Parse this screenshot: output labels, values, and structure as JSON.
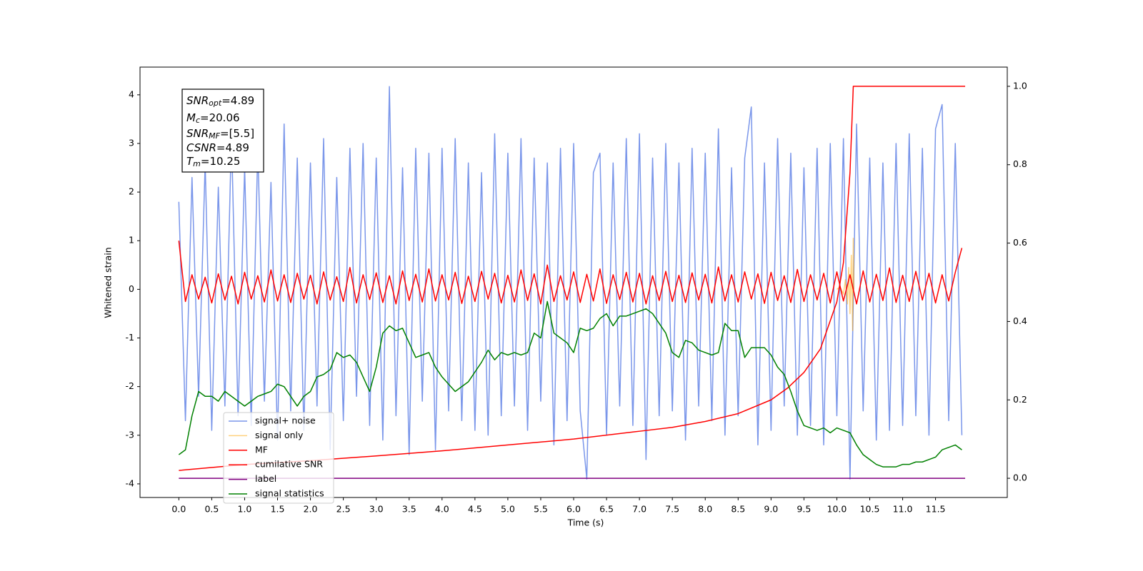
{
  "chart_data": {
    "type": "line",
    "xlabel": "Time (s)",
    "ylabel": "Whitened strain",
    "xlim": [
      -0.59,
      12.59
    ],
    "ylim": [
      -4.28,
      4.57
    ],
    "y2lim": [
      -0.049,
      1.049
    ],
    "xticks": [
      {
        "value": 0,
        "label": "0.0"
      },
      0.5,
      {
        "value": 1,
        "label": "1.0"
      },
      1.5,
      {
        "value": 2,
        "label": "2.0"
      },
      2.5,
      {
        "value": 3,
        "label": "3.0"
      },
      3.5,
      {
        "value": 4,
        "label": "4.0"
      },
      4.5,
      {
        "value": 5,
        "label": "5.0"
      },
      5.5,
      {
        "value": 6,
        "label": "6.0"
      },
      6.5,
      {
        "value": 7,
        "label": "7.0"
      },
      7.5,
      {
        "value": 8,
        "label": "8.0"
      },
      8.5,
      {
        "value": 9,
        "label": "9.0"
      },
      9.5,
      {
        "value": 10,
        "label": "10.0"
      },
      10.5,
      {
        "value": 11,
        "label": "11.0"
      },
      11.5
    ],
    "yticks": [
      -4,
      -3,
      -2,
      -1,
      0,
      1,
      2,
      3,
      4
    ],
    "y2ticks": [
      {
        "value": 0,
        "label": "0.0"
      },
      0.2,
      0.4,
      0.6,
      0.8,
      {
        "value": 1,
        "label": "1.0"
      }
    ],
    "legend": "lower left",
    "annotation": [
      {
        "symbol": "SNR",
        "subscript": "opt",
        "text": "=4.89"
      },
      {
        "symbol": "M",
        "subscript": "c",
        "text": "=20.06"
      },
      {
        "symbol": "SNR",
        "subscript": "MF",
        "text": "=[5.5]"
      },
      {
        "symbol": "CSNR",
        "text": "=4.89"
      },
      {
        "symbol": "T",
        "subscript": "m",
        "text": "=10.25"
      }
    ],
    "x": [
      0,
      0.1,
      0.2,
      0.3,
      0.4,
      0.5,
      0.6,
      0.7,
      0.8,
      0.9,
      1,
      1.1,
      1.2,
      1.3,
      1.4,
      1.5,
      1.6,
      1.7,
      1.8,
      1.9,
      2,
      2.1,
      2.2,
      2.3,
      2.4,
      2.5,
      2.6,
      2.7,
      2.8,
      2.9,
      3,
      3.1,
      3.2,
      3.3,
      3.4,
      3.5,
      3.6,
      3.7,
      3.8,
      3.9,
      4,
      4.1,
      4.2,
      4.3,
      4.4,
      4.5,
      4.6,
      4.7,
      4.8,
      4.9,
      5,
      5.1,
      5.2,
      5.3,
      5.4,
      5.5,
      5.6,
      5.7,
      5.8,
      5.9,
      6,
      6.1,
      6.2,
      6.3,
      6.4,
      6.5,
      6.6,
      6.7,
      6.8,
      6.9,
      7,
      7.1,
      7.2,
      7.3,
      7.4,
      7.5,
      7.6,
      7.7,
      7.8,
      7.9,
      8,
      8.1,
      8.2,
      8.3,
      8.4,
      8.5,
      8.6,
      8.7,
      8.8,
      8.9,
      9,
      9.1,
      9.2,
      9.3,
      9.4,
      9.5,
      9.6,
      9.7,
      9.8,
      9.9,
      10,
      10.1,
      10.2,
      10.3,
      10.4,
      10.5,
      10.6,
      10.7,
      10.8,
      10.9,
      11,
      11.1,
      11.2,
      11.3,
      11.4,
      11.5,
      11.6,
      11.7,
      11.8,
      11.9
    ],
    "series": [
      {
        "name": "signal+ noise",
        "color": "#4169e1",
        "alpha": 0.7,
        "values": [
          1.8,
          -2.7,
          2.3,
          -2.2,
          2.6,
          -2.9,
          2.1,
          -2.4,
          3.2,
          -2.6,
          2.5,
          -2.8,
          2.9,
          -2.3,
          2.2,
          -3.1,
          3.4,
          -2.5,
          2.7,
          -2.9,
          2.6,
          -2.4,
          3.1,
          -3.3,
          2.3,
          -2.7,
          2.9,
          -2.2,
          3.0,
          -2.8,
          2.7,
          -3.1,
          4.17,
          -2.6,
          2.5,
          -3.4,
          2.9,
          -2.3,
          2.8,
          -3.3,
          2.9,
          -2.5,
          3.1,
          -2.7,
          2.6,
          -2.9,
          2.4,
          -3.0,
          3.2,
          -2.6,
          2.8,
          -2.4,
          3.1,
          -2.9,
          2.7,
          -2.3,
          2.6,
          -3.2,
          2.9,
          -2.7,
          3.0,
          -2.5,
          -3.9,
          2.4,
          2.8,
          -3.0,
          2.6,
          -2.4,
          3.1,
          -2.8,
          3.2,
          -3.5,
          2.7,
          -2.6,
          3.0,
          -2.5,
          2.6,
          -3.1,
          2.9,
          -2.4,
          2.8,
          -2.7,
          3.3,
          -3.0,
          2.5,
          -2.6,
          2.7,
          3.75,
          -3.2,
          2.6,
          -2.9,
          3.1,
          -2.4,
          2.8,
          -3.0,
          2.5,
          -2.8,
          2.9,
          -3.2,
          3.0,
          -2.6,
          3.1,
          -3.9,
          3.4,
          -2.5,
          2.7,
          -3.1,
          2.6,
          -2.9,
          3.0,
          -2.8,
          3.2,
          -2.6,
          2.9,
          -3.0,
          3.3,
          3.8,
          -2.7,
          3.0,
          -3.0
        ]
      },
      {
        "name": "signal only",
        "color": "#ffa500",
        "alpha": 0.5,
        "x": [
          10,
          10.05,
          10.1,
          10.13,
          10.16,
          10.18,
          10.2,
          10.22,
          10.24,
          10.25,
          10.26
        ],
        "values": [
          0,
          0.05,
          -0.1,
          0.2,
          -0.3,
          0.45,
          -0.5,
          0.7,
          -0.85,
          1.05,
          0
        ]
      },
      {
        "name": "MF",
        "color": "#ff0000",
        "values": [
          1.0,
          -0.25,
          0.3,
          -0.2,
          0.25,
          -0.28,
          0.32,
          -0.22,
          0.27,
          -0.3,
          0.35,
          -0.2,
          0.28,
          -0.26,
          0.4,
          -0.24,
          0.3,
          -0.27,
          0.33,
          -0.2,
          0.29,
          -0.3,
          0.36,
          -0.22,
          0.26,
          -0.25,
          0.45,
          -0.28,
          0.3,
          -0.21,
          0.34,
          -0.27,
          0.28,
          -0.3,
          0.38,
          -0.23,
          0.31,
          -0.26,
          0.42,
          -0.24,
          0.3,
          -0.22,
          0.35,
          -0.29,
          0.27,
          -0.25,
          0.37,
          -0.2,
          0.33,
          -0.28,
          0.29,
          -0.26,
          0.4,
          -0.23,
          0.32,
          -0.3,
          0.5,
          -0.25,
          0.28,
          -0.22,
          0.36,
          -0.27,
          0.31,
          -0.24,
          0.42,
          -0.29,
          0.3,
          -0.21,
          0.35,
          -0.26,
          0.33,
          -0.3,
          0.28,
          -0.23,
          0.37,
          -0.25,
          0.29,
          -0.27,
          0.34,
          -0.22,
          0.31,
          -0.28,
          0.46,
          -0.24,
          0.3,
          -0.26,
          0.36,
          -0.2,
          0.32,
          -0.29,
          0.35,
          -0.23,
          0.28,
          -0.27,
          0.41,
          -0.25,
          0.3,
          -0.22,
          0.33,
          -0.28,
          0.36,
          -0.24,
          0.3,
          -0.3,
          0.38,
          -0.26,
          0.31,
          -0.23,
          0.44,
          -0.27,
          0.29,
          -0.25,
          0.37,
          -0.22,
          0.33,
          -0.28,
          0.3,
          -0.24,
          0.35,
          0.85
        ]
      },
      {
        "name": "cumilative SNR",
        "color": "#ff0000",
        "axis": "y2",
        "x": [
          0,
          1,
          2,
          3,
          4,
          5,
          6,
          7,
          7.5,
          8,
          8.5,
          9,
          9.25,
          9.5,
          9.75,
          10,
          10.1,
          10.2,
          10.25,
          11.95
        ],
        "values": [
          0.02,
          0.035,
          0.045,
          0.057,
          0.07,
          0.085,
          0.1,
          0.12,
          0.13,
          0.145,
          0.165,
          0.2,
          0.23,
          0.27,
          0.33,
          0.45,
          0.55,
          0.78,
          1.0,
          1.0
        ]
      },
      {
        "name": "label",
        "color": "#800080",
        "axis": "y2",
        "x": [
          0,
          11.95
        ],
        "values": [
          0,
          0
        ]
      },
      {
        "name": "signal statistics",
        "color": "#008000",
        "values": [
          -3.4,
          -3.3,
          -2.6,
          -2.1,
          -2.2,
          -2.2,
          -2.3,
          -2.1,
          -2.2,
          -2.3,
          -2.4,
          -2.3,
          -2.2,
          -2.15,
          -2.1,
          -1.95,
          -2.0,
          -2.2,
          -2.4,
          -2.2,
          -2.1,
          -1.8,
          -1.75,
          -1.65,
          -1.3,
          -1.4,
          -1.35,
          -1.5,
          -1.8,
          -2.1,
          -1.6,
          -0.9,
          -0.75,
          -0.85,
          -0.8,
          -1.1,
          -1.4,
          -1.35,
          -1.3,
          -1.6,
          -1.8,
          -1.95,
          -2.1,
          -2.0,
          -1.9,
          -1.7,
          -1.5,
          -1.25,
          -1.45,
          -1.3,
          -1.35,
          -1.3,
          -1.35,
          -1.3,
          -0.9,
          -1.0,
          -0.25,
          -0.9,
          -1.0,
          -1.1,
          -1.3,
          -0.8,
          -0.85,
          -0.8,
          -0.6,
          -0.5,
          -0.75,
          -0.55,
          -0.55,
          -0.5,
          -0.45,
          -0.4,
          -0.5,
          -0.7,
          -0.9,
          -1.3,
          -1.4,
          -1.05,
          -1.1,
          -1.25,
          -1.3,
          -1.35,
          -1.3,
          -0.7,
          -0.85,
          -0.85,
          -1.4,
          -1.2,
          -1.2,
          -1.2,
          -1.35,
          -1.6,
          -1.75,
          -2.1,
          -2.5,
          -2.8,
          -2.85,
          -2.9,
          -2.85,
          -2.95,
          -2.85,
          -2.9,
          -2.95,
          -3.2,
          -3.4,
          -3.5,
          -3.6,
          -3.65,
          -3.65,
          -3.65,
          -3.6,
          -3.6,
          -3.55,
          -3.55,
          -3.5,
          -3.45,
          -3.3,
          -3.25,
          -3.2,
          -3.3
        ]
      }
    ]
  }
}
